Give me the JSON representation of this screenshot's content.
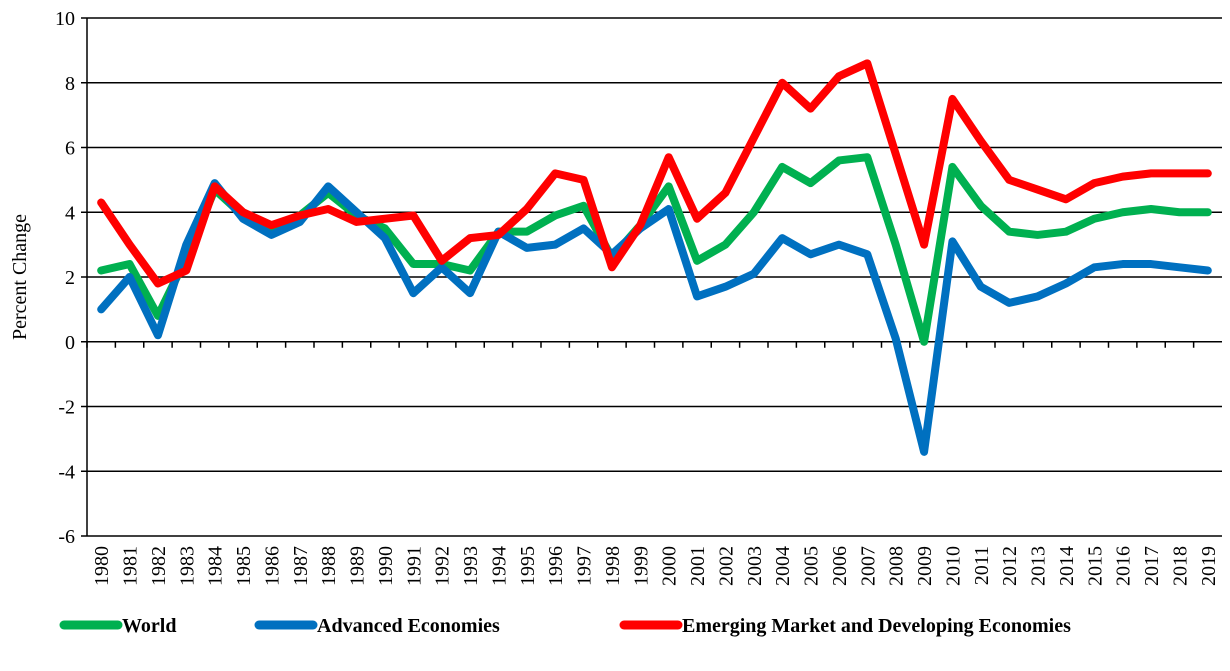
{
  "chart_data": {
    "type": "line",
    "y_label": "Percent Change",
    "categories": [
      "1980",
      "1981",
      "1982",
      "1983",
      "1984",
      "1985",
      "1986",
      "1987",
      "1988",
      "1989",
      "1990",
      "1991",
      "1992",
      "1993",
      "1994",
      "1995",
      "1996",
      "1997",
      "1998",
      "1999",
      "2000",
      "2001",
      "2002",
      "2003",
      "2004",
      "2005",
      "2006",
      "2007",
      "2008",
      "2009",
      "2010",
      "2011",
      "2012",
      "2013",
      "2014",
      "2015",
      "2016",
      "2017",
      "2018",
      "2019"
    ],
    "series": [
      {
        "name": "World",
        "color": "#00b050",
        "values": [
          2.2,
          2.4,
          0.8,
          2.6,
          4.7,
          3.9,
          3.5,
          3.9,
          4.6,
          3.9,
          3.5,
          2.4,
          2.4,
          2.2,
          3.4,
          3.4,
          3.9,
          4.2,
          2.6,
          3.6,
          4.8,
          2.5,
          3.0,
          4.0,
          5.4,
          4.9,
          5.6,
          5.7,
          3.0,
          0.0,
          5.4,
          4.2,
          3.4,
          3.3,
          3.4,
          3.8,
          4.0,
          4.1,
          4.0,
          4.0
        ]
      },
      {
        "name": "Advanced Economies",
        "color": "#0070c0",
        "values": [
          1.0,
          2.0,
          0.2,
          3.0,
          4.9,
          3.8,
          3.3,
          3.7,
          4.8,
          4.0,
          3.2,
          1.5,
          2.3,
          1.5,
          3.4,
          2.9,
          3.0,
          3.5,
          2.7,
          3.5,
          4.1,
          1.4,
          1.7,
          2.1,
          3.2,
          2.7,
          3.0,
          2.7,
          0.1,
          -3.4,
          3.1,
          1.7,
          1.2,
          1.4,
          1.8,
          2.3,
          2.4,
          2.4,
          2.3,
          2.2
        ]
      },
      {
        "name": "Emerging Market and Developing Economies",
        "color": "#ff0000",
        "values": [
          4.3,
          3.0,
          1.8,
          2.2,
          4.8,
          4.0,
          3.6,
          3.9,
          4.1,
          3.7,
          3.8,
          3.9,
          2.5,
          3.2,
          3.3,
          4.1,
          5.2,
          5.0,
          2.3,
          3.6,
          5.7,
          3.8,
          4.6,
          6.3,
          8.0,
          7.2,
          8.2,
          8.6,
          5.8,
          3.0,
          7.5,
          6.2,
          5.0,
          4.7,
          4.4,
          4.9,
          5.1,
          5.2,
          5.2,
          5.2
        ]
      }
    ],
    "ylim": [
      -6,
      10
    ],
    "yticks": [
      -6,
      -4,
      -2,
      0,
      2,
      4,
      6,
      8,
      10
    ],
    "grid": true
  }
}
